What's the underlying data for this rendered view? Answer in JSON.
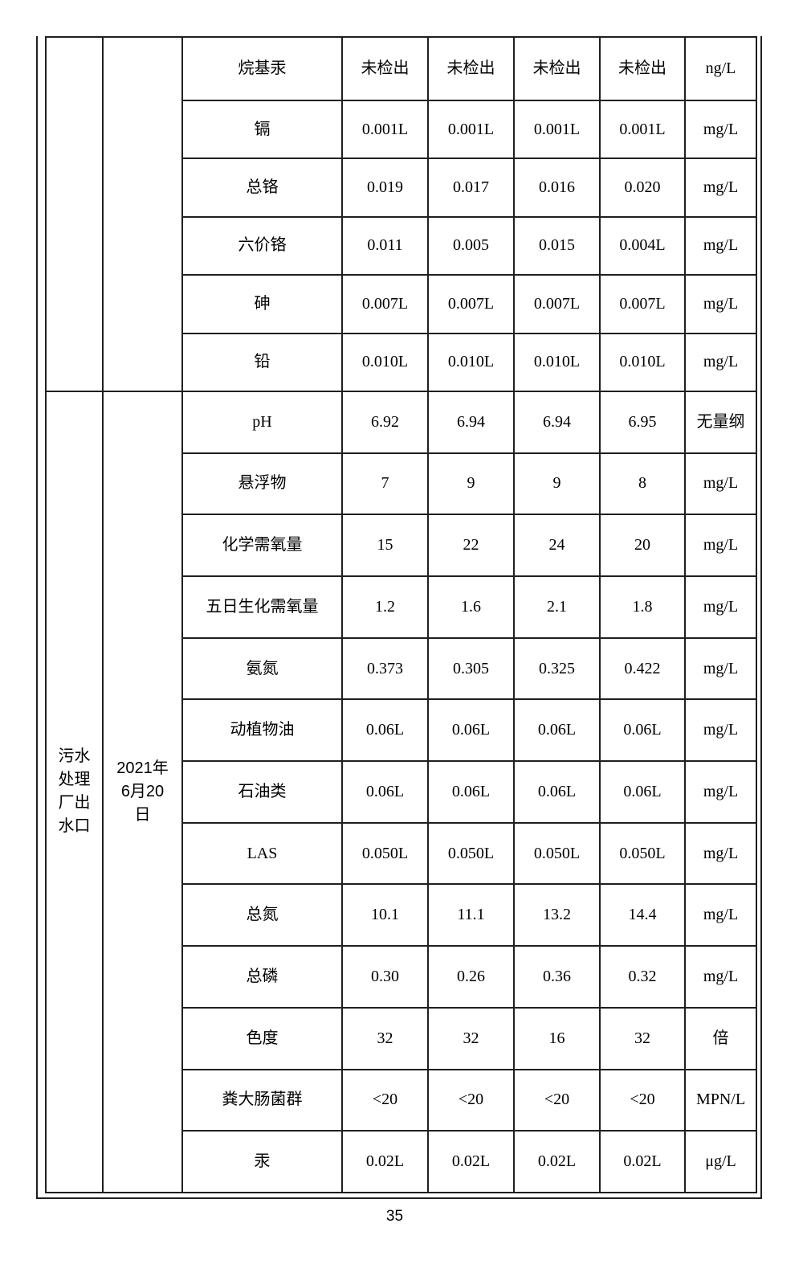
{
  "page": {
    "number": "35"
  },
  "table": {
    "sections": [
      {
        "point": "",
        "date": "",
        "rows": [
          {
            "param": "烷基汞",
            "values": [
              "未检出",
              "未检出",
              "未检出",
              "未检出"
            ],
            "unit": "ng/L"
          },
          {
            "param": "镉",
            "values": [
              "0.001L",
              "0.001L",
              "0.001L",
              "0.001L"
            ],
            "unit": "mg/L"
          },
          {
            "param": "总铬",
            "values": [
              "0.019",
              "0.017",
              "0.016",
              "0.020"
            ],
            "unit": "mg/L"
          },
          {
            "param": "六价铬",
            "values": [
              "0.011",
              "0.005",
              "0.015",
              "0.004L"
            ],
            "unit": "mg/L"
          },
          {
            "param": "砷",
            "values": [
              "0.007L",
              "0.007L",
              "0.007L",
              "0.007L"
            ],
            "unit": "mg/L"
          },
          {
            "param": "铅",
            "values": [
              "0.010L",
              "0.010L",
              "0.010L",
              "0.010L"
            ],
            "unit": "mg/L"
          }
        ]
      },
      {
        "point": "污水\n处理\n厂出\n水口",
        "date": "2021年\n6月20\n日",
        "rows": [
          {
            "param": "pH",
            "values": [
              "6.92",
              "6.94",
              "6.94",
              "6.95"
            ],
            "unit": "无量纲"
          },
          {
            "param": "悬浮物",
            "values": [
              "7",
              "9",
              "9",
              "8"
            ],
            "unit": "mg/L"
          },
          {
            "param": "化学需氧量",
            "values": [
              "15",
              "22",
              "24",
              "20"
            ],
            "unit": "mg/L"
          },
          {
            "param": "五日生化需氧量",
            "values": [
              "1.2",
              "1.6",
              "2.1",
              "1.8"
            ],
            "unit": "mg/L"
          },
          {
            "param": "氨氮",
            "values": [
              "0.373",
              "0.305",
              "0.325",
              "0.422"
            ],
            "unit": "mg/L"
          },
          {
            "param": "动植物油",
            "values": [
              "0.06L",
              "0.06L",
              "0.06L",
              "0.06L"
            ],
            "unit": "mg/L"
          },
          {
            "param": "石油类",
            "values": [
              "0.06L",
              "0.06L",
              "0.06L",
              "0.06L"
            ],
            "unit": "mg/L"
          },
          {
            "param": "LAS",
            "values": [
              "0.050L",
              "0.050L",
              "0.050L",
              "0.050L"
            ],
            "unit": "mg/L"
          },
          {
            "param": "总氮",
            "values": [
              "10.1",
              "11.1",
              "13.2",
              "14.4"
            ],
            "unit": "mg/L"
          },
          {
            "param": "总磷",
            "values": [
              "0.30",
              "0.26",
              "0.36",
              "0.32"
            ],
            "unit": "mg/L"
          },
          {
            "param": "色度",
            "values": [
              "32",
              "32",
              "16",
              "32"
            ],
            "unit": "倍"
          },
          {
            "param": "粪大肠菌群",
            "values": [
              "<20",
              "<20",
              "<20",
              "<20"
            ],
            "unit": "MPN/L"
          },
          {
            "param": "汞",
            "values": [
              "0.02L",
              "0.02L",
              "0.02L",
              "0.02L"
            ],
            "unit": "μg/L"
          }
        ]
      }
    ]
  }
}
